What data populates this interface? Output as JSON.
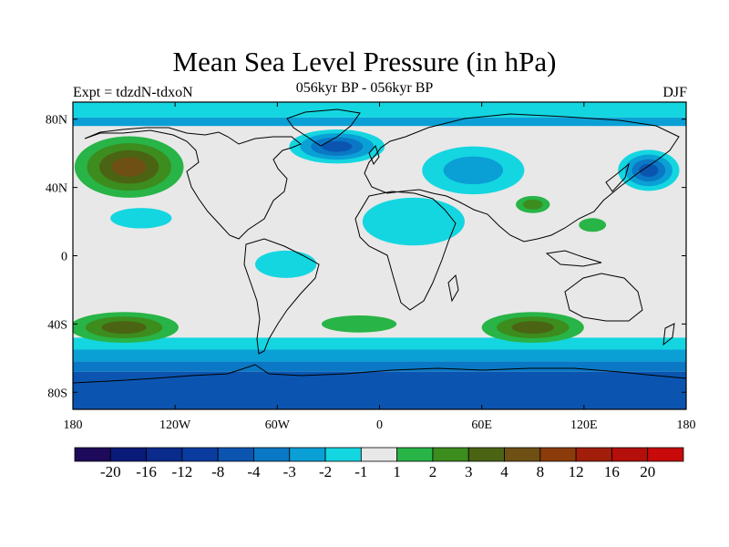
{
  "title": "Mean Sea Level Pressure (in hPa)",
  "subtitle": "056kyr BP - 056kyr BP",
  "left_note": "Expt = tdzdN-tdxoN",
  "right_note": "DJF",
  "x_ticks": [
    {
      "lon": -180,
      "label": "180"
    },
    {
      "lon": -120,
      "label": "120W"
    },
    {
      "lon": -60,
      "label": "60W"
    },
    {
      "lon": 0,
      "label": "0"
    },
    {
      "lon": 60,
      "label": "60E"
    },
    {
      "lon": 120,
      "label": "120E"
    },
    {
      "lon": 180,
      "label": "180"
    }
  ],
  "y_ticks": [
    {
      "lat": 80,
      "label": "80N"
    },
    {
      "lat": 40,
      "label": "40N"
    },
    {
      "lat": 0,
      "label": "0"
    },
    {
      "lat": -40,
      "label": "40S"
    },
    {
      "lat": -80,
      "label": "80S"
    }
  ],
  "colorbar": {
    "colors": [
      "#1e0a5a",
      "#0a1a78",
      "#0a2a8c",
      "#0a3ca0",
      "#0b55b0",
      "#0a78c4",
      "#0aa0d6",
      "#14d6e0",
      "#e8e8e8",
      "#28b446",
      "#3c8c1e",
      "#4a6414",
      "#6e5014",
      "#8c3c0a",
      "#a01e0a",
      "#b40f0a",
      "#c80a0a"
    ],
    "labels": [
      "-20",
      "-16",
      "-12",
      "-8",
      "-4",
      "-3",
      "-2",
      "-1",
      "1",
      "2",
      "3",
      "4",
      "8",
      "12",
      "16",
      "20"
    ]
  },
  "map_fields": {
    "background": "#e8e8e8",
    "southern_ocean_bands": [
      {
        "lat_top": -48,
        "lat_bottom": -55,
        "color": "#14d6e0"
      },
      {
        "lat_top": -55,
        "lat_bottom": -62,
        "color": "#0aa0d6"
      },
      {
        "lat_top": -62,
        "lat_bottom": -68,
        "color": "#0a78c4"
      },
      {
        "lat_top": -68,
        "lat_bottom": -90,
        "color": "#0b55b0"
      }
    ],
    "arctic_bands": [
      {
        "lat_top": 90,
        "lat_bottom": 81,
        "color": "#14d6e0"
      },
      {
        "lat_top": 81,
        "lat_bottom": 76,
        "color": "#0aa0d6"
      }
    ],
    "regions": [
      {
        "name": "north-pacific-high",
        "lon": -147,
        "lat": 52,
        "rx": 32,
        "ry": 18,
        "colors": [
          "#28b446",
          "#3c8c1e",
          "#4a6414",
          "#6e5014"
        ]
      },
      {
        "name": "north-atlantic-low",
        "lon": -25,
        "lat": 64,
        "rx": 28,
        "ry": 10,
        "colors": [
          "#14d6e0",
          "#0aa0d6",
          "#0a78c4",
          "#0b55b0"
        ]
      },
      {
        "name": "north-pacific-west-low",
        "lon": 158,
        "lat": 50,
        "rx": 18,
        "ry": 12,
        "colors": [
          "#14d6e0",
          "#0aa0d6",
          "#0a78c4",
          "#0b55b0"
        ]
      },
      {
        "name": "south-pacific-high",
        "lon": -150,
        "lat": -42,
        "rx": 32,
        "ry": 9,
        "colors": [
          "#28b446",
          "#3c8c1e",
          "#4a6414"
        ]
      },
      {
        "name": "south-indian-high",
        "lon": 90,
        "lat": -42,
        "rx": 30,
        "ry": 9,
        "colors": [
          "#28b446",
          "#3c8c1e",
          "#4a6414"
        ]
      },
      {
        "name": "south-atlantic-high",
        "lon": -12,
        "lat": -40,
        "rx": 22,
        "ry": 5,
        "colors": [
          "#28b446"
        ]
      },
      {
        "name": "tibet-high",
        "lon": 90,
        "lat": 30,
        "rx": 10,
        "ry": 5,
        "colors": [
          "#28b446",
          "#3c8c1e"
        ]
      },
      {
        "name": "africa-low",
        "lon": 20,
        "lat": 20,
        "rx": 30,
        "ry": 14,
        "colors": [
          "#14d6e0"
        ]
      },
      {
        "name": "eurasia-low",
        "lon": 55,
        "lat": 50,
        "rx": 30,
        "ry": 14,
        "colors": [
          "#14d6e0",
          "#0aa0d6"
        ]
      },
      {
        "name": "south-america-low",
        "lon": -55,
        "lat": -5,
        "rx": 18,
        "ry": 8,
        "colors": [
          "#14d6e0"
        ]
      },
      {
        "name": "east-pacific-low",
        "lon": -140,
        "lat": 22,
        "rx": 18,
        "ry": 6,
        "colors": [
          "#14d6e0"
        ]
      },
      {
        "name": "indonesia-high",
        "lon": 125,
        "lat": 18,
        "rx": 8,
        "ry": 4,
        "colors": [
          "#28b446"
        ]
      }
    ]
  }
}
